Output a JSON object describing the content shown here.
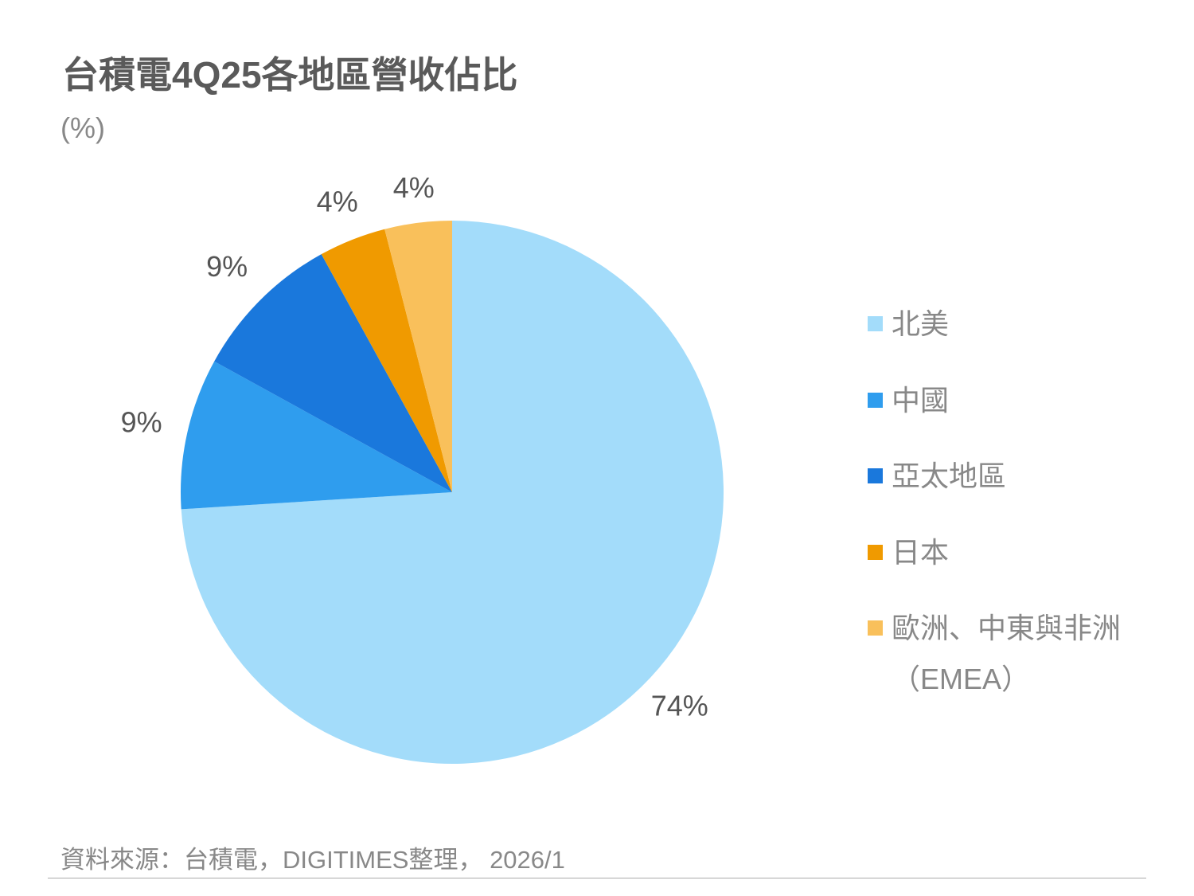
{
  "title": "台積電4Q25各地區營收佔比",
  "unit": "(%)",
  "source": "資料來源：台積電，DIGITIMES整理， 2026/1",
  "chart_data": {
    "type": "pie",
    "title": "台積電4Q25各地區營收佔比",
    "unit": "(%)",
    "start": "12 o'clock, clockwise",
    "legend_position": "right",
    "slices": [
      {
        "label": "北美",
        "value": 74,
        "display": "74%",
        "color": "#A3DCFA"
      },
      {
        "label": "中國",
        "value": 9,
        "display": "9%",
        "color": "#2F9DEE"
      },
      {
        "label": "亞太地區",
        "value": 9,
        "display": "9%",
        "color": "#1A78DC"
      },
      {
        "label": "日本",
        "value": 4,
        "display": "4%",
        "color": "#F09A00"
      },
      {
        "label": "歐洲、中東與非洲",
        "sublabel": "（EMEA）",
        "value": 4,
        "display": "4%",
        "color": "#F9C05B"
      }
    ]
  }
}
